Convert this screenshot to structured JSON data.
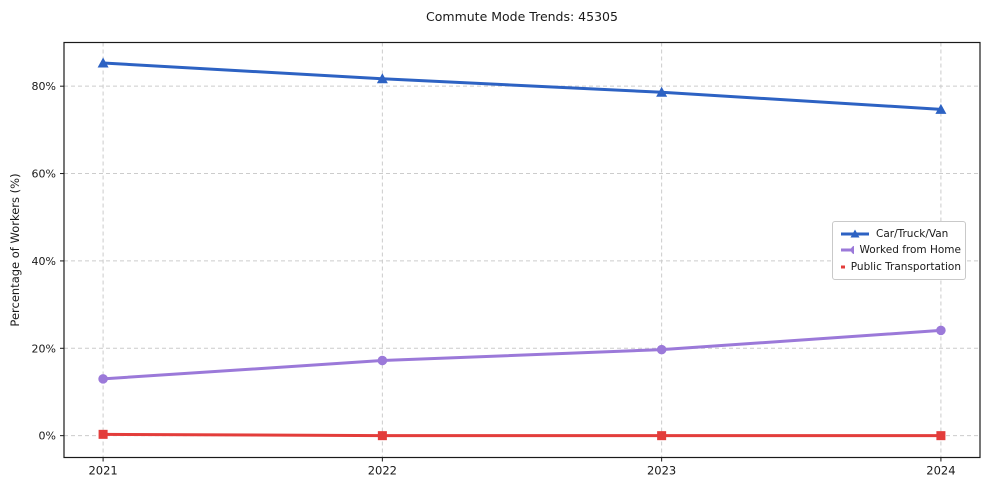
{
  "colors": {
    "background": "#ffffff",
    "grid": "#cccccc",
    "spine": "#1a1a1a",
    "text": "#1a1a1a",
    "legend_border": "#c9c9c9",
    "car_blue": "#2d62c3",
    "home_purple": "#9b79d9",
    "transit_red": "#e33d3b"
  },
  "chart_data": {
    "type": "line",
    "title": "Commute Mode Trends: 45305",
    "xlabel": "",
    "ylabel": "Percentage of Workers (%)",
    "x": [
      2021,
      2022,
      2023,
      2024
    ],
    "xticks": [
      "2021",
      "2022",
      "2023",
      "2024"
    ],
    "yticks": [
      "0%",
      "20%",
      "40%",
      "60%",
      "80%"
    ],
    "ytick_values": [
      0,
      20,
      40,
      60,
      80
    ],
    "xlim": [
      2020.86,
      2024.14
    ],
    "ylim": [
      -5,
      90
    ],
    "grid": true,
    "legend_position": "center-right",
    "series": [
      {
        "name": "Car/Truck/Van",
        "marker": "triangle",
        "color": "#2d62c3",
        "values": [
          85.3,
          81.7,
          78.6,
          74.7
        ]
      },
      {
        "name": "Worked from Home",
        "marker": "circle",
        "color": "#9b79d9",
        "values": [
          13.0,
          17.2,
          19.7,
          24.1
        ]
      },
      {
        "name": "Public Transportation",
        "marker": "square",
        "color": "#e33d3b",
        "values": [
          0.3,
          0.0,
          0.0,
          0.0
        ]
      }
    ]
  }
}
